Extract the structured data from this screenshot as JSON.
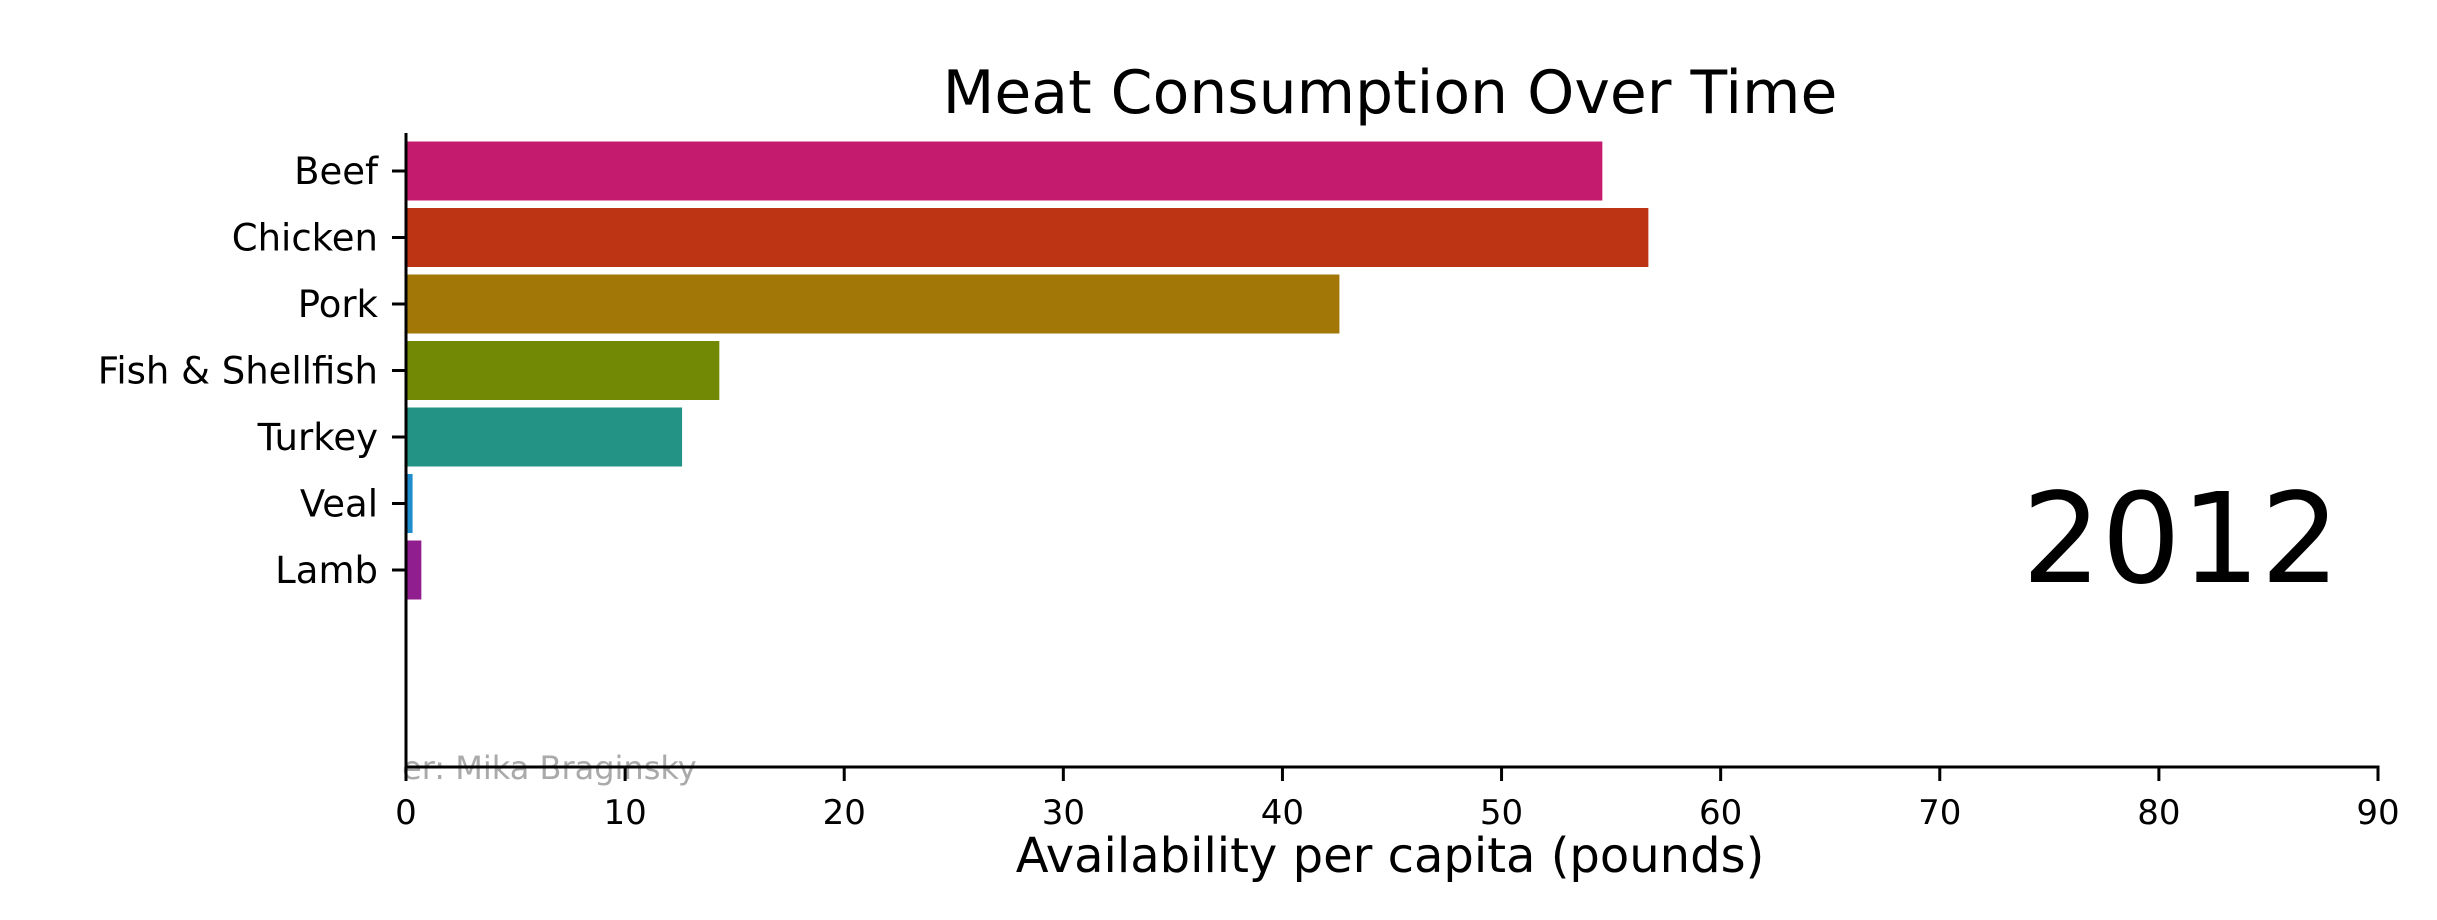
{
  "chart_data": {
    "type": "bar",
    "orientation": "horizontal",
    "title": "Meat Consumption Over Time",
    "xlabel": "Availability per capita (pounds)",
    "ylabel": "",
    "year": "2012",
    "credit": "er: Mika Braginsky",
    "xlim": [
      0,
      90
    ],
    "xticks": [
      "0",
      "10",
      "20",
      "30",
      "40",
      "50",
      "60",
      "70",
      "80",
      "90"
    ],
    "categories": [
      "Beef",
      "Chicken",
      "Pork",
      "Fish & Shellfish",
      "Turkey",
      "Veal",
      "Lamb"
    ],
    "values": [
      54.6,
      56.7,
      42.6,
      14.3,
      12.6,
      0.3,
      0.7
    ],
    "colors": [
      "#c51b6f",
      "#bd3415",
      "#a27707",
      "#718905",
      "#239386",
      "#1f8ccc",
      "#911e8e"
    ],
    "grid": false
  }
}
